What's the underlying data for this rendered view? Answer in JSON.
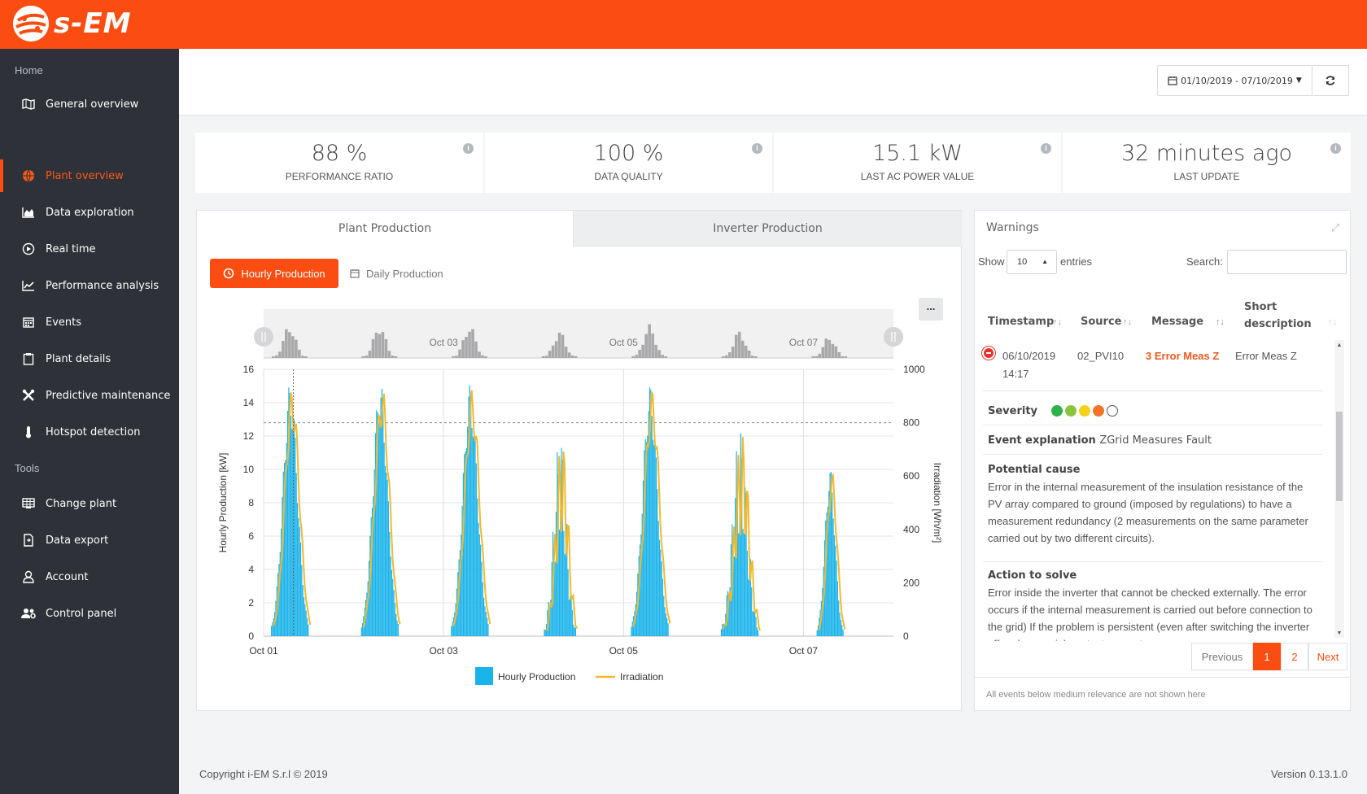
{
  "app": {
    "name": "s-EM"
  },
  "sidebar": {
    "sections": [
      "Home",
      "Tools"
    ],
    "items": [
      {
        "label": "General overview",
        "icon": "map-icon"
      },
      {
        "label": "Plant overview",
        "icon": "globe-icon",
        "active": true
      },
      {
        "label": "Data exploration",
        "icon": "area-chart-icon"
      },
      {
        "label": "Real time",
        "icon": "play-circle-icon"
      },
      {
        "label": "Performance analysis",
        "icon": "line-chart-icon"
      },
      {
        "label": "Events",
        "icon": "calendar-icon"
      },
      {
        "label": "Plant details",
        "icon": "clipboard-icon"
      },
      {
        "label": "Predictive maintenance",
        "icon": "tools-icon"
      },
      {
        "label": "Hotspot detection",
        "icon": "thermometer-icon"
      },
      {
        "label": "Change plant",
        "icon": "grid-icon"
      },
      {
        "label": "Data export",
        "icon": "file-export-icon"
      },
      {
        "label": "Account",
        "icon": "user-icon"
      },
      {
        "label": "Control panel",
        "icon": "users-cog-icon"
      }
    ]
  },
  "header": {
    "date_range": "01/10/2019 - 07/10/2019"
  },
  "kpis": [
    {
      "value": "88 %",
      "label": "PERFORMANCE RATIO"
    },
    {
      "value": "100 %",
      "label": "DATA QUALITY"
    },
    {
      "value": "15.1 kW",
      "label": "LAST AC POWER VALUE"
    },
    {
      "value": "32 minutes ago",
      "label": "LAST UPDATE"
    }
  ],
  "production": {
    "tabs": [
      "Plant Production",
      "Inverter Production"
    ],
    "hourly_btn": "Hourly Production",
    "daily_btn": "Daily Production",
    "more_btn": "..."
  },
  "chart_data": {
    "type": "bar",
    "x_tick_labels": [
      "Oct 01",
      "Oct 03",
      "Oct 05",
      "Oct 07"
    ],
    "navigator_labels": [
      "Oct 03",
      "Oct 05",
      "Oct 07"
    ],
    "ylabel": "Hourly Production [kW]",
    "y2label": "Irradiation [Wh/m²]",
    "ylim": [
      0,
      16
    ],
    "y2lim": [
      0,
      1000
    ],
    "y_ticks": [
      0,
      2,
      4,
      6,
      8,
      10,
      12,
      14,
      16
    ],
    "y2_ticks": [
      0,
      200,
      400,
      600,
      800,
      1000
    ],
    "x_range_days": [
      0,
      7
    ],
    "reference_line_y2": 800,
    "series": [
      {
        "name": "Hourly Production",
        "type": "bar",
        "color": "#1ab3ea",
        "days": [
          {
            "day": 0,
            "peak": 15.2,
            "width": 0.13
          },
          {
            "day": 1,
            "peak": 15.3,
            "width": 0.13
          },
          {
            "day": 2,
            "peak": 15.1,
            "width": 0.13
          },
          {
            "day": 3,
            "peak": 12.3,
            "width": 0.11
          },
          {
            "day": 4,
            "peak": 15.1,
            "width": 0.13
          },
          {
            "day": 5,
            "peak": 12.5,
            "width": 0.13
          },
          {
            "day": 6,
            "peak": 10.1,
            "width": 0.09
          }
        ]
      },
      {
        "name": "Irradiation",
        "type": "line",
        "color": "#f0b92f"
      }
    ],
    "legend": "bottom-center"
  },
  "warnings": {
    "title": "Warnings",
    "show_label": "Show",
    "entries_value": "10",
    "entries_label": "entries",
    "search_label": "Search:",
    "columns": [
      "Timestamp",
      "Source",
      "Message",
      "Short description"
    ],
    "row": {
      "timestamp_date": "06/10/2019",
      "timestamp_time": "14:17",
      "source": "02_PVI10",
      "message": "3 Error Meas Z",
      "short": "Error Meas Z"
    },
    "severity_label": "Severity",
    "severity_colors": [
      "#2db24a",
      "#8bc53f",
      "#f4d21b",
      "#f4722b"
    ],
    "explanation_label": "Event explanation",
    "explanation_value": "ZGrid Measures Fault",
    "cause_label": "Potential cause",
    "cause_text": "Error in the internal measurement of the insulation resistance of the PV array compared to ground (imposed by regulations) to have a measurement redundancy (2 measurements on the same parameter carried out by two different circuits).",
    "solve_label": "Action to solve",
    "solve_text": "Error inside the inverter that cannot be checked externally. The error occurs if the internal measurement is carried out before connection to the grid) If the problem is persistent (even after switching the inverter off and on again) contact support.",
    "pager": {
      "prev": "Previous",
      "p1": "1",
      "p2": "2",
      "next": "Next"
    },
    "footnote": "All events below medium relevance are not shown here"
  },
  "footer": {
    "copyright": "Copyright i-EM S.r.l © 2019",
    "version": "Version 0.13.1.0"
  }
}
